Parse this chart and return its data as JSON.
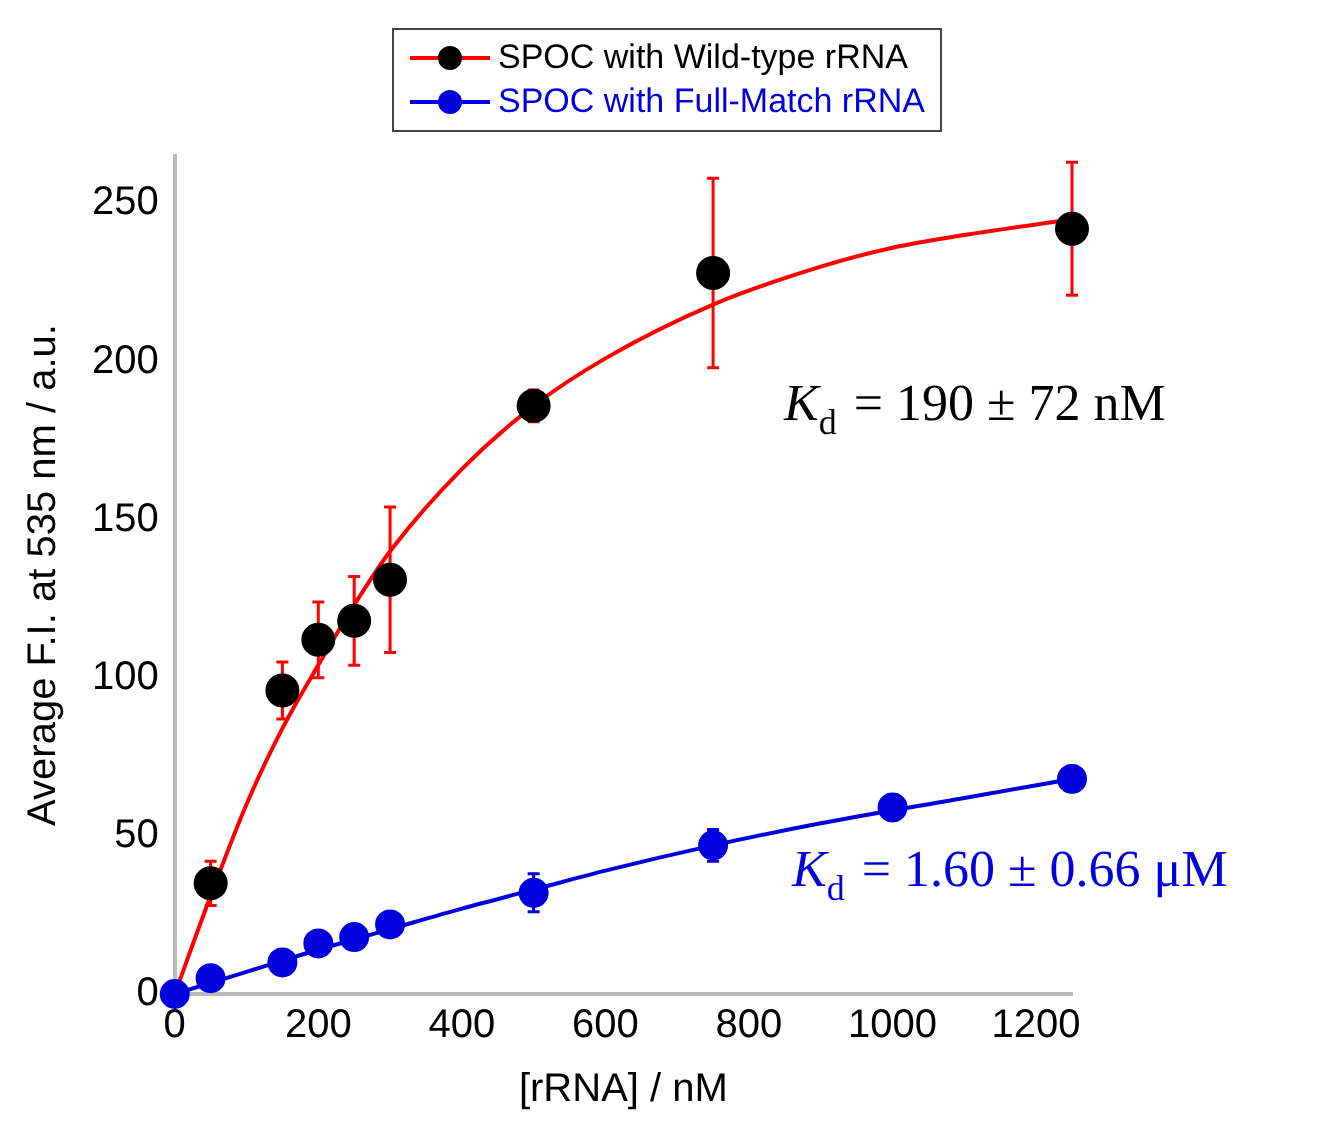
{
  "chart_data": {
    "type": "scatter",
    "xlabel": "[rRNA] / nM",
    "ylabel": "Average F.I. at 535 nm / a.u.",
    "xlim": [
      0,
      1250
    ],
    "xticks": [
      0,
      200,
      400,
      600,
      800,
      1000,
      1200
    ],
    "ylim": [
      0,
      265
    ],
    "yticks": [
      0,
      50,
      100,
      150,
      200,
      250
    ],
    "grid": false,
    "legend": "top",
    "marker": "circle",
    "series": [
      {
        "name": "SPOC with Wild-type rRNA",
        "color": "#000000",
        "x": [
          50,
          150,
          200,
          250,
          300,
          500,
          750,
          1250
        ],
        "values": [
          35,
          96,
          112,
          118,
          131,
          186,
          228,
          242
        ],
        "errors": [
          7,
          9,
          12,
          14,
          23,
          5,
          30,
          21
        ]
      },
      {
        "name": "SPOC with Full-Match rRNA",
        "color": "#0000dd",
        "x": [
          0,
          50,
          150,
          200,
          250,
          300,
          500,
          750,
          1000,
          1250
        ],
        "values": [
          0,
          5,
          10,
          16,
          18,
          22,
          32,
          47,
          59,
          68
        ],
        "errors": [
          null,
          null,
          null,
          null,
          null,
          null,
          6,
          5,
          4,
          4
        ]
      },
      {
        "type": "line",
        "marker": "none",
        "color": "#ff0000",
        "x": [
          0,
          50,
          100,
          150,
          200,
          250,
          300,
          400,
          500,
          600,
          750,
          900,
          1000,
          1100,
          1250
        ],
        "values": [
          0,
          31,
          60,
          84,
          104,
          123,
          140,
          166,
          186,
          201,
          218,
          230,
          236,
          240,
          245
        ]
      },
      {
        "type": "line",
        "marker": "none",
        "color": "#0000dd",
        "x": [
          0,
          100,
          200,
          300,
          400,
          500,
          600,
          750,
          900,
          1100,
          1250
        ],
        "values": [
          0,
          7,
          14,
          20.5,
          27,
          33,
          39,
          47,
          54,
          62,
          68
        ]
      }
    ],
    "annotations": [
      "K$_{d}$ = 190 ± 72 nM",
      "K$_{d}$ = 1.60 ± 0.66 μM"
    ]
  }
}
